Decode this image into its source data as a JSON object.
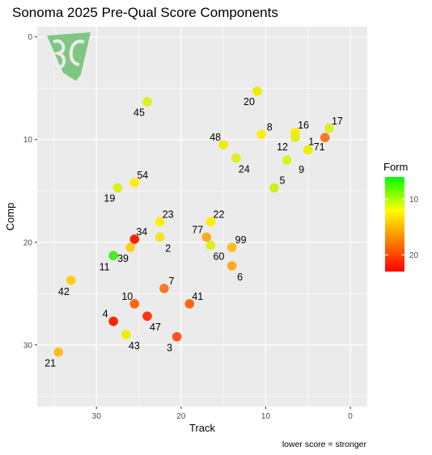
{
  "chart_data": {
    "type": "scatter",
    "title": "Sonoma 2025 Pre-Qual Score Components",
    "xlabel": "Track",
    "ylabel": "Comp",
    "caption": "lower score = stronger",
    "xlim": [
      37,
      -2
    ],
    "ylim": [
      36,
      -1
    ],
    "x_reversed": true,
    "y_reversed": true,
    "x_ticks": [
      30,
      20,
      10,
      0
    ],
    "y_ticks": [
      0,
      10,
      20,
      30
    ],
    "grid": true,
    "legend": {
      "title": "Form",
      "placement": "right",
      "range": [
        6,
        23
      ],
      "ticks": [
        10,
        20
      ],
      "colors": [
        "#00ff00",
        "#ffff00",
        "#ff0000"
      ]
    },
    "logo": {
      "name": "bc-logo",
      "color": "#6cc070"
    },
    "points": [
      {
        "label": "20",
        "track": 11.0,
        "comp": 5.3,
        "form": 13,
        "color": "#eeee00"
      },
      {
        "label": "45",
        "track": 24.0,
        "comp": 6.3,
        "form": 13,
        "color": "#ddee22"
      },
      {
        "label": "8",
        "track": 10.5,
        "comp": 9.5,
        "form": 14,
        "color": "#ffee00"
      },
      {
        "label": "16",
        "track": 6.5,
        "comp": 9.3,
        "form": 15,
        "color": "#ffee00"
      },
      {
        "label": "17",
        "track": 2.5,
        "comp": 8.9,
        "form": 11,
        "color": "#ddee22"
      },
      {
        "label": "12",
        "track": 6.5,
        "comp": 9.8,
        "form": 12,
        "color": "#ddee22"
      },
      {
        "label": "71",
        "track": 3.0,
        "comp": 9.8,
        "form": 22,
        "color": "#ff7722"
      },
      {
        "label": "48",
        "track": 15.0,
        "comp": 10.5,
        "form": 13,
        "color": "#eeee00"
      },
      {
        "label": "1",
        "track": 5.0,
        "comp": 11.0,
        "form": 13,
        "color": "#eeee00"
      },
      {
        "label": "9",
        "track": 7.5,
        "comp": 12.0,
        "form": 12,
        "color": "#ddee22"
      },
      {
        "label": "24",
        "track": 13.5,
        "comp": 11.8,
        "form": 13,
        "color": "#ddee22"
      },
      {
        "label": "54",
        "track": 25.5,
        "comp": 14.2,
        "form": 15,
        "color": "#ffee00"
      },
      {
        "label": "19",
        "track": 27.5,
        "comp": 14.7,
        "form": 12,
        "color": "#ddee22"
      },
      {
        "label": "5",
        "track": 9.0,
        "comp": 14.7,
        "form": 11,
        "color": "#ccee22"
      },
      {
        "label": "23",
        "track": 22.5,
        "comp": 18.0,
        "form": 15,
        "color": "#ffee00"
      },
      {
        "label": "22",
        "track": 16.5,
        "comp": 18.0,
        "form": 15,
        "color": "#ffee00"
      },
      {
        "label": "34",
        "track": 25.5,
        "comp": 19.7,
        "form": 24,
        "color": "#ff2200"
      },
      {
        "label": "2",
        "track": 22.5,
        "comp": 19.5,
        "form": 16,
        "color": "#ffdd22"
      },
      {
        "label": "77",
        "track": 17.0,
        "comp": 19.5,
        "form": 20,
        "color": "#ffaa22"
      },
      {
        "label": "99",
        "track": 14.0,
        "comp": 20.5,
        "form": 19,
        "color": "#ffbb22"
      },
      {
        "label": "60",
        "track": 16.5,
        "comp": 20.3,
        "form": 12,
        "color": "#ddee22"
      },
      {
        "label": "11",
        "track": 28.0,
        "comp": 21.3,
        "form": 7,
        "color": "#44ee22"
      },
      {
        "label": "39",
        "track": 26.0,
        "comp": 20.5,
        "form": 18,
        "color": "#ffcc22"
      },
      {
        "label": "6",
        "track": 14.0,
        "comp": 22.3,
        "form": 19,
        "color": "#ffaa22"
      },
      {
        "label": "42",
        "track": 33.0,
        "comp": 23.7,
        "form": 17,
        "color": "#ffcc22"
      },
      {
        "label": "7",
        "track": 22.0,
        "comp": 24.5,
        "form": 21,
        "color": "#ff7722"
      },
      {
        "label": "10",
        "track": 25.5,
        "comp": 26.0,
        "form": 22,
        "color": "#ff6611"
      },
      {
        "label": "41",
        "track": 19.0,
        "comp": 26.0,
        "form": 22,
        "color": "#ff6611"
      },
      {
        "label": "47",
        "track": 24.0,
        "comp": 27.2,
        "form": 23,
        "color": "#ff3311"
      },
      {
        "label": "4",
        "track": 28.0,
        "comp": 27.7,
        "form": 24,
        "color": "#ff2200"
      },
      {
        "label": "43",
        "track": 26.5,
        "comp": 29.0,
        "form": 14,
        "color": "#eeee00"
      },
      {
        "label": "3",
        "track": 20.5,
        "comp": 29.2,
        "form": 22,
        "color": "#ff5522"
      },
      {
        "label": "21",
        "track": 34.5,
        "comp": 30.7,
        "form": 18,
        "color": "#ffbb22"
      }
    ]
  }
}
